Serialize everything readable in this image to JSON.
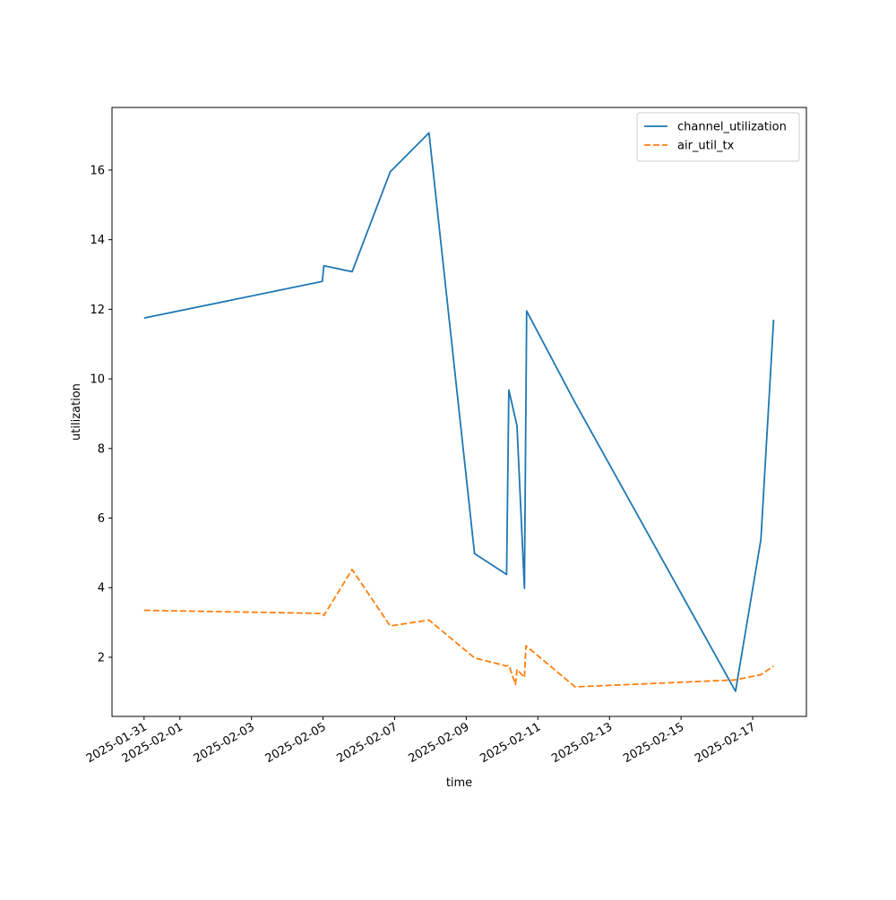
{
  "chart_data": {
    "type": "line",
    "title": "",
    "xlabel": "time",
    "ylabel": "utilization",
    "x_ticks": [
      "2025-01-31",
      "2025-02-01",
      "2025-02-03",
      "2025-02-05",
      "2025-02-07",
      "2025-02-09",
      "2025-02-11",
      "2025-02-13",
      "2025-02-15",
      "2025-02-17"
    ],
    "y_ticks": [
      2,
      4,
      6,
      8,
      10,
      12,
      14,
      16
    ],
    "xlim": [
      "2025-01-30T02:30",
      "2025-02-18T12:00"
    ],
    "ylim": [
      0.3,
      17.8
    ],
    "grid": false,
    "legend_position": "top-right",
    "series": [
      {
        "name": "channel_utilization",
        "color": "#1f77b4",
        "dash": "solid",
        "points": [
          [
            "2025-01-31T00:00",
            11.75
          ],
          [
            "2025-02-04T23:30",
            12.8
          ],
          [
            "2025-02-05T00:30",
            13.25
          ],
          [
            "2025-02-05T19:30",
            13.08
          ],
          [
            "2025-02-06T21:00",
            15.95
          ],
          [
            "2025-02-07T23:00",
            17.07
          ],
          [
            "2025-02-09T05:30",
            4.98
          ],
          [
            "2025-02-10T03:00",
            4.38
          ],
          [
            "2025-02-10T04:30",
            9.68
          ],
          [
            "2025-02-10T10:00",
            8.65
          ],
          [
            "2025-02-10T15:00",
            3.98
          ],
          [
            "2025-02-10T16:30",
            11.95
          ],
          [
            "2025-02-12T00:30",
            9.35
          ],
          [
            "2025-02-16T12:30",
            1.02
          ],
          [
            "2025-02-17T05:30",
            5.38
          ],
          [
            "2025-02-17T14:00",
            11.7
          ]
        ]
      },
      {
        "name": "air_util_tx",
        "color": "#ff7f0e",
        "dash": "dashed",
        "points": [
          [
            "2025-01-31T00:00",
            3.35
          ],
          [
            "2025-02-04T23:30",
            3.26
          ],
          [
            "2025-02-05T00:30",
            3.2
          ],
          [
            "2025-02-05T19:30",
            4.52
          ],
          [
            "2025-02-06T21:00",
            2.9
          ],
          [
            "2025-02-07T23:00",
            3.07
          ],
          [
            "2025-02-09T05:30",
            1.98
          ],
          [
            "2025-02-10T03:00",
            1.75
          ],
          [
            "2025-02-10T04:30",
            1.77
          ],
          [
            "2025-02-10T09:00",
            1.22
          ],
          [
            "2025-02-10T10:00",
            1.65
          ],
          [
            "2025-02-10T15:00",
            1.42
          ],
          [
            "2025-02-10T16:00",
            2.33
          ],
          [
            "2025-02-12T01:00",
            1.15
          ],
          [
            "2025-02-16T12:30",
            1.35
          ],
          [
            "2025-02-17T05:30",
            1.5
          ],
          [
            "2025-02-17T14:00",
            1.75
          ]
        ]
      }
    ]
  }
}
